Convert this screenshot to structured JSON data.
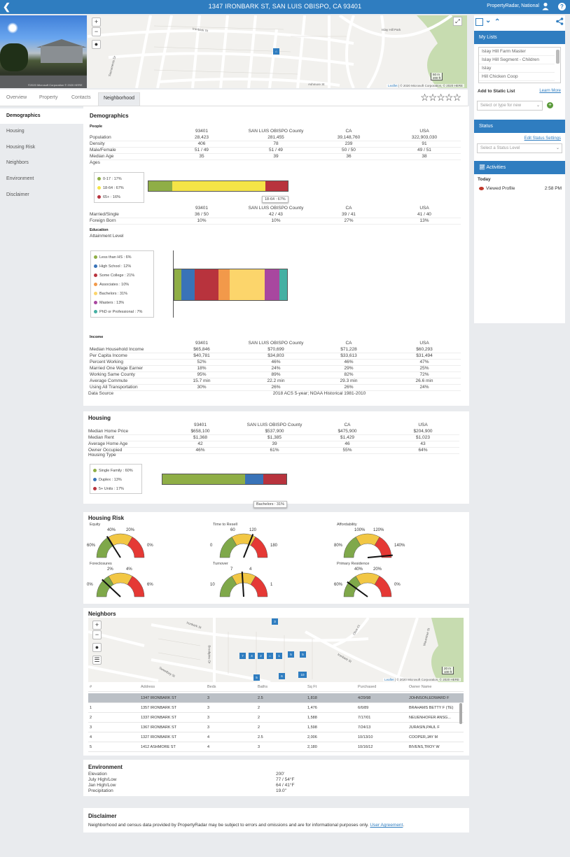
{
  "topbar": {
    "title": "1347 IRONBARK ST, SAN LUIS OBISPO, CA 93401",
    "user": "PropertyRadar, National",
    "back_icon": "chevron-left-icon",
    "help": "?"
  },
  "photo": {
    "copyright": "©2020 Microsoft Corporation © 2020 HERE"
  },
  "top_map": {
    "labels": [
      "Islay Hill Park",
      "Ironbark St",
      "Sacramento Dr",
      "Ashmore St"
    ],
    "scale_top": "50 m",
    "scale_bottom": "200 ft",
    "attribution_link": "Leaflet",
    "attribution": " | © 2020 Microsoft Corporation, © 2020 HERE",
    "controls": [
      "zoom-in",
      "zoom-out",
      "globe"
    ]
  },
  "sidebar": {
    "my_lists_title": "My Lists",
    "lists": [
      "Islay Hill Farm Master",
      "Islay Hill Segment - Children",
      "Islay",
      "Hill Chicken Coop"
    ],
    "add_static_list": "Add to Static List",
    "learn_more": "Learn More",
    "static_placeholder": "Select or type for new",
    "status_title": "Status",
    "edit_status": "Edit Status Settings",
    "status_placeholder": "Select a Status Level",
    "activities_title": "Activities",
    "today": "Today",
    "activity": {
      "label": "Viewed Profile",
      "time": "2:58 PM"
    }
  },
  "tabs": [
    "Overview",
    "Property",
    "Contacts",
    "Neighborhood"
  ],
  "active_tab": "Neighborhood",
  "stars": "☆☆☆☆☆",
  "leftnav": [
    "Demographics",
    "Housing",
    "Housing Risk",
    "Neighbors",
    "Environment",
    "Disclaimer"
  ],
  "columns": [
    "93401",
    "SAN LUIS OBISPO County",
    "CA",
    "USA"
  ],
  "demographics": {
    "title": "Demographics",
    "people_label": "People",
    "people": [
      {
        "label": "Population",
        "v": [
          "28,423",
          "281,455",
          "39,148,760",
          "322,903,030"
        ]
      },
      {
        "label": "Density",
        "v": [
          "406",
          "78",
          "239",
          "91"
        ]
      },
      {
        "label": "Male/Female",
        "v": [
          "51 / 49",
          "51 / 49",
          "50 / 50",
          "49 / 51"
        ]
      },
      {
        "label": "Median Age",
        "v": [
          "35",
          "39",
          "36",
          "38"
        ]
      }
    ],
    "ages_label": "Ages",
    "ages": [
      {
        "label": "0-17 : 17%",
        "value": 17,
        "color": "#8fae46"
      },
      {
        "label": "18-64 : 67%",
        "value": 67,
        "color": "#f5e447"
      },
      {
        "label": "65+ : 16%",
        "value": 16,
        "color": "#b8333d"
      }
    ],
    "ages_tip": "18-64 : 67%",
    "people2": [
      {
        "label": "Married/Single",
        "v": [
          "36 / 50",
          "42 / 43",
          "39 / 41",
          "41 / 40"
        ]
      },
      {
        "label": "Foreign Born",
        "v": [
          "10%",
          "10%",
          "27%",
          "13%"
        ]
      }
    ],
    "education_label": "Education",
    "attainment_label": "Attainment Level",
    "education": [
      {
        "label": "Less than HS : 6%",
        "value": 6,
        "color": "#8fae46"
      },
      {
        "label": "High School : 12%",
        "value": 12,
        "color": "#3973b8"
      },
      {
        "label": "Some College : 21%",
        "value": 21,
        "color": "#b8333d"
      },
      {
        "label": "Associates : 10%",
        "value": 10,
        "color": "#f2994a"
      },
      {
        "label": "Bachelors : 31%",
        "value": 31,
        "color": "#fcd56b"
      },
      {
        "label": "Masters : 13%",
        "value": 13,
        "color": "#a8479f"
      },
      {
        "label": "PhD or Professional : 7%",
        "value": 7,
        "color": "#45b0a3"
      }
    ],
    "income_label": "Income",
    "income": [
      {
        "label": "Median Household Income",
        "v": [
          "$65,846",
          "$70,699",
          "$71,228",
          "$60,293"
        ]
      },
      {
        "label": "Per Capita Income",
        "v": [
          "$40,781",
          "$34,803",
          "$33,613",
          "$31,494"
        ]
      },
      {
        "label": "Percent Working",
        "v": [
          "52%",
          "46%",
          "46%",
          "47%"
        ]
      },
      {
        "label": "Married One Wage Earner",
        "v": [
          "18%",
          "24%",
          "29%",
          "25%"
        ]
      },
      {
        "label": "Working Same County",
        "v": [
          "95%",
          "89%",
          "82%",
          "72%"
        ]
      },
      {
        "label": "Average Commute",
        "v": [
          "15.7 min",
          "22.2 min",
          "29.3 min",
          "26.6 min"
        ]
      },
      {
        "label": "Using All Transportation",
        "v": [
          "30%",
          "26%",
          "26%",
          "24%"
        ]
      }
    ],
    "data_source_label": "Data Source",
    "data_source": "2018 ACS 5-year; NOAA Historical 1981-2010"
  },
  "housing": {
    "title": "Housing",
    "rows": [
      {
        "label": "Median Home Price",
        "v": [
          "$658,100",
          "$537,900",
          "$475,900",
          "$204,900"
        ]
      },
      {
        "label": "Median Rent",
        "v": [
          "$1,368",
          "$1,385",
          "$1,429",
          "$1,023"
        ]
      },
      {
        "label": "Average Home Age",
        "v": [
          "42",
          "39",
          "46",
          "43"
        ]
      },
      {
        "label": "Owner Occupied",
        "v": [
          "46%",
          "61%",
          "55%",
          "64%"
        ]
      }
    ],
    "type_label": "Housing Type",
    "types": [
      {
        "label": "Single Family : 60%",
        "value": 60,
        "color": "#8fae46"
      },
      {
        "label": "Duplex : 13%",
        "value": 13,
        "color": "#3973b8"
      },
      {
        "label": "5+ Units : 17%",
        "value": 17,
        "color": "#b8333d"
      }
    ],
    "tip": "Bachelors : 31%"
  },
  "risk": {
    "title": "Housing Risk",
    "gauges": [
      {
        "label": "Equity",
        "ticks": [
          "60%",
          "40%",
          "20%",
          "0%"
        ],
        "needle": 0.32
      },
      {
        "label": "Time to Resell",
        "ticks": [
          "0",
          "60",
          "120",
          "180"
        ],
        "needle": 0.62
      },
      {
        "label": "Affordability",
        "ticks": [
          "80%",
          "100%",
          "120%",
          "140%"
        ],
        "needle": 0.97
      },
      {
        "label": "Foreclosures",
        "ticks": [
          "0%",
          "2%",
          "4%",
          "6%"
        ],
        "needle": 0.24
      },
      {
        "label": "Turnover",
        "ticks": [
          "10",
          "7",
          "4",
          "1"
        ],
        "needle": 0.48
      },
      {
        "label": "Primary Residence",
        "ticks": [
          "60%",
          "40%",
          "20%",
          "0%"
        ],
        "needle": 0.2
      }
    ]
  },
  "neighbors": {
    "title": "Neighbors",
    "map_labels": [
      "Ironbark St",
      "Brookpine Dr",
      "Sweetbay St",
      "Olive Ct",
      "Wavertree St"
    ],
    "pins": [
      "3",
      "7",
      "4",
      "2",
      "1",
      "5",
      "6",
      "10"
    ],
    "attribution_link": "Leaflet",
    "attribution": " | © 2020 Microsoft Corporation, © 2020 HERE",
    "scale_top": "20 m",
    "scale_bottom": "100 ft",
    "headers": [
      "#",
      "Address",
      "Beds",
      "Baths",
      "Sq Ft",
      "Purchased",
      "Owner Name"
    ],
    "rows": [
      [
        "",
        "1347 IRONBARK ST",
        "3",
        "2.5",
        "1,818",
        "4/29/98",
        "JOHNSON,EDWARD F"
      ],
      [
        "1",
        "1357 IRONBARK ST",
        "3",
        "2",
        "1,476",
        "6/6/89",
        "BRAHAMS BETTY F (TE)"
      ],
      [
        "2",
        "1337 IRONBARK ST",
        "3",
        "2",
        "1,588",
        "7/17/01",
        "NEUENHOFER ANSG..."
      ],
      [
        "3",
        "1367 IRONBARK ST",
        "3",
        "2",
        "1,598",
        "7/24/13",
        "JURASIN,PAUL F"
      ],
      [
        "4",
        "1327 IRONBARK ST",
        "4",
        "2.5",
        "2,006",
        "10/13/10",
        "COOPER,JAY M"
      ],
      [
        "5",
        "1412 ASHMORE ST",
        "4",
        "3",
        "2,180",
        "10/16/12",
        "BIVENS,TROY W"
      ]
    ]
  },
  "environment": {
    "title": "Environment",
    "rows": [
      {
        "label": "Elevation",
        "v": "200'"
      },
      {
        "label": "July High/Low",
        "v": "77 / 54°F"
      },
      {
        "label": "Jan High/Low",
        "v": "64 / 41°F"
      },
      {
        "label": "Precipitation",
        "v": "19.0\""
      }
    ]
  },
  "disclaimer": {
    "title": "Disclaimer",
    "text": "Neighborhood and census data provided by PropertyRadar may be subject to errors and omissions and are for informational purposes only.",
    "link": "User Agreement",
    "end": "."
  }
}
